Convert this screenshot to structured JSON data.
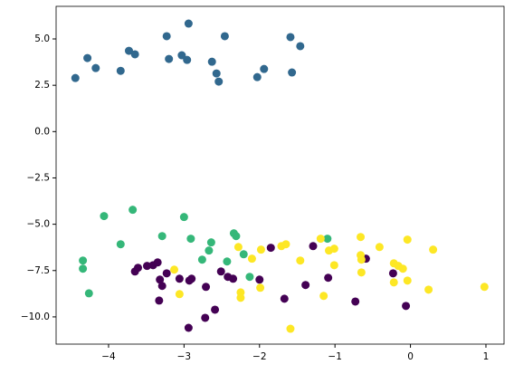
{
  "chart_data": {
    "type": "scatter",
    "xlim": [
      -4.695,
      1.24
    ],
    "ylim": [
      -11.47,
      6.76
    ],
    "xticks": [
      {
        "value": -4,
        "label": "−4"
      },
      {
        "value": -3,
        "label": "−3"
      },
      {
        "value": -2,
        "label": "−2"
      },
      {
        "value": -1,
        "label": "−1"
      },
      0,
      1
    ],
    "yticks": [
      {
        "value": -10,
        "label": "−10.0"
      },
      {
        "value": -7.5,
        "label": "−7.5"
      },
      {
        "value": -5,
        "label": "−5.0"
      },
      {
        "value": -2.5,
        "label": "−2.5"
      },
      {
        "value": 0,
        "label": "0.0"
      },
      {
        "value": 2.5,
        "label": "2.5"
      },
      {
        "value": 5,
        "label": "5.0"
      }
    ],
    "series": [
      {
        "color": "#31688e",
        "x": [
          -4.44,
          -4.28,
          -4.17,
          -3.84,
          -3.73,
          -3.65,
          -3.23,
          -3.2,
          -3.03,
          -2.96,
          -2.94,
          -2.63,
          -2.57,
          -2.54,
          -2.46,
          -2.03,
          -1.94,
          -1.59,
          -1.57,
          -1.46
        ],
        "y": [
          2.89,
          3.97,
          3.43,
          3.28,
          4.36,
          4.17,
          5.15,
          3.92,
          4.12,
          3.87,
          5.83,
          3.77,
          3.14,
          2.7,
          5.15,
          2.94,
          3.38,
          5.1,
          3.19,
          4.61
        ]
      },
      {
        "color": "#35b779",
        "x": [
          -4.06,
          -3.68,
          -3.84,
          -4.34,
          -4.34,
          -4.26,
          -3.29,
          -3.0,
          -2.91,
          -2.64,
          -2.67,
          -2.76,
          -2.43,
          -2.34,
          -2.31,
          -2.21,
          -2.13,
          -1.1
        ],
        "y": [
          -4.56,
          -4.22,
          -6.08,
          -6.96,
          -7.4,
          -8.73,
          -5.64,
          -4.61,
          -5.78,
          -5.98,
          -6.42,
          -6.91,
          -7.01,
          -5.49,
          -5.64,
          -6.62,
          -7.84,
          -5.78
        ]
      },
      {
        "color": "#440154",
        "x": [
          -3.65,
          -3.61,
          -3.49,
          -3.41,
          -3.35,
          -3.32,
          -3.29,
          -3.33,
          -3.23,
          -3.06,
          -2.93,
          -2.9,
          -2.94,
          -2.71,
          -2.72,
          -2.59,
          -2.51,
          -2.42,
          -2.35,
          -2.0,
          -1.85,
          -1.67,
          -1.39,
          -1.29,
          -1.09,
          -0.73,
          -0.59,
          -0.23,
          -0.06
        ],
        "y": [
          -7.55,
          -7.35,
          -7.25,
          -7.21,
          -7.06,
          -7.99,
          -8.33,
          -9.12,
          -7.65,
          -7.94,
          -8.04,
          -7.94,
          -10.59,
          -8.38,
          -10.05,
          -9.61,
          -7.55,
          -7.84,
          -7.94,
          -7.99,
          -6.27,
          -9.02,
          -8.28,
          -6.18,
          -7.89,
          -9.17,
          -6.86,
          -7.65,
          -9.41
        ]
      },
      {
        "color": "#fde725",
        "x": [
          -3.13,
          -3.06,
          -2.28,
          -2.25,
          -2.25,
          -2.1,
          -1.99,
          -1.98,
          -1.71,
          -1.65,
          -1.59,
          -1.46,
          -1.19,
          -1.15,
          -1.08,
          -1.01,
          -1.01,
          -0.66,
          -0.66,
          -0.65,
          -0.65,
          -0.41,
          -0.22,
          -0.22,
          -0.16,
          -0.1,
          -0.04,
          -0.04,
          0.24,
          0.3,
          0.98
        ],
        "y": [
          -7.45,
          -8.77,
          -6.23,
          -8.68,
          -8.97,
          -6.86,
          -8.43,
          -6.37,
          -6.18,
          -6.08,
          -10.64,
          -6.96,
          -5.78,
          -8.87,
          -6.42,
          -6.32,
          -7.21,
          -5.69,
          -6.67,
          -6.91,
          -7.6,
          -6.23,
          -7.11,
          -8.14,
          -7.25,
          -7.4,
          -5.83,
          -8.04,
          -8.53,
          -6.37,
          -8.38
        ]
      }
    ]
  }
}
